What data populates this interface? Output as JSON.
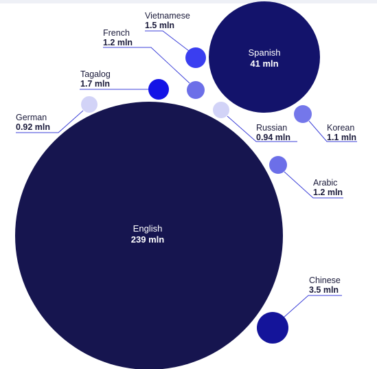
{
  "chart_data": {
    "type": "bubble",
    "bubbles": [
      {
        "name": "English",
        "value_label": "239 mln",
        "value": 239,
        "color": "#16154f"
      },
      {
        "name": "Spanish",
        "value_label": "41 mln",
        "value": 41,
        "color": "#13136b"
      },
      {
        "name": "Chinese",
        "value_label": "3.5 mln",
        "value": 3.5,
        "color": "#14149a"
      },
      {
        "name": "Tagalog",
        "value_label": "1.7 mln",
        "value": 1.7,
        "color": "#1414e6"
      },
      {
        "name": "Vietnamese",
        "value_label": "1.5 mln",
        "value": 1.5,
        "color": "#3a3ef0"
      },
      {
        "name": "French",
        "value_label": "1.2 mln",
        "value": 1.2,
        "color": "#6c6fe8"
      },
      {
        "name": "Arabic",
        "value_label": "1.2 mln",
        "value": 1.2,
        "color": "#6c6fe8"
      },
      {
        "name": "Korean",
        "value_label": "1.1 mln",
        "value": 1.1,
        "color": "#7477ea"
      },
      {
        "name": "Russian",
        "value_label": "0.94 mln",
        "value": 0.94,
        "color": "#d2d3f7"
      },
      {
        "name": "German",
        "value_label": "0.92 mln",
        "value": 0.92,
        "color": "#d2d3f7"
      }
    ]
  }
}
